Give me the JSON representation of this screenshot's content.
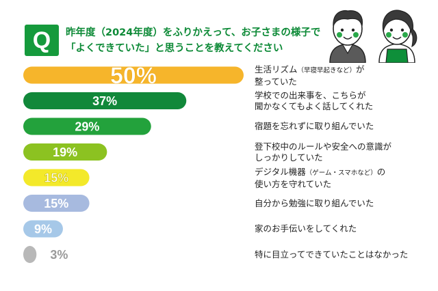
{
  "question": {
    "badge": "Q",
    "line1": "昨年度（2024年度）をふりかえって、お子さまの様子で",
    "line2": "「よくできていた」と思うことを教えてください"
  },
  "illustration": {
    "icon": "parents-icon",
    "shirt_left": "#5a5a5a",
    "apron_right": "#0e8f3a"
  },
  "chart_data": {
    "type": "bar",
    "orientation": "horizontal",
    "value_suffix": "%",
    "xlim": [
      0,
      50
    ],
    "grid": false,
    "legend": "none",
    "items": [
      {
        "value": 50,
        "label_main": "生活リズム",
        "label_note": "（早寝早起きなど）",
        "label_tail": "が",
        "label_line2": "整っていた",
        "color": "#f6b52b"
      },
      {
        "value": 37,
        "label_main": "学校での出来事を、こちらが",
        "label_note": "",
        "label_tail": "",
        "label_line2": "聞かなくてもよく話してくれた",
        "color": "#11883a"
      },
      {
        "value": 29,
        "label_main": "宿題を忘れずに取り組んでいた",
        "label_note": "",
        "label_tail": "",
        "label_line2": "",
        "color": "#23a23c"
      },
      {
        "value": 19,
        "label_main": "登下校中のルールや安全への意識が",
        "label_note": "",
        "label_tail": "",
        "label_line2": "しっかりしていた",
        "color": "#8cc221"
      },
      {
        "value": 15,
        "label_main": "デジタル機器",
        "label_note": "（ゲーム・スマホなど）",
        "label_tail": "の",
        "label_line2": "使い方を守れていた",
        "color": "#f3e92a"
      },
      {
        "value": 15,
        "label_main": "自分から勉強に取り組んでいた",
        "label_note": "",
        "label_tail": "",
        "label_line2": "",
        "color": "#a7badf"
      },
      {
        "value": 9,
        "label_main": "家のお手伝いをしてくれた",
        "label_note": "",
        "label_tail": "",
        "label_line2": "",
        "color": "#a6c8e8"
      },
      {
        "value": 3,
        "label_main": "特に目立ってできていたことはなかった",
        "label_note": "",
        "label_tail": "",
        "label_line2": "",
        "color": "#b8b8b8"
      }
    ]
  }
}
